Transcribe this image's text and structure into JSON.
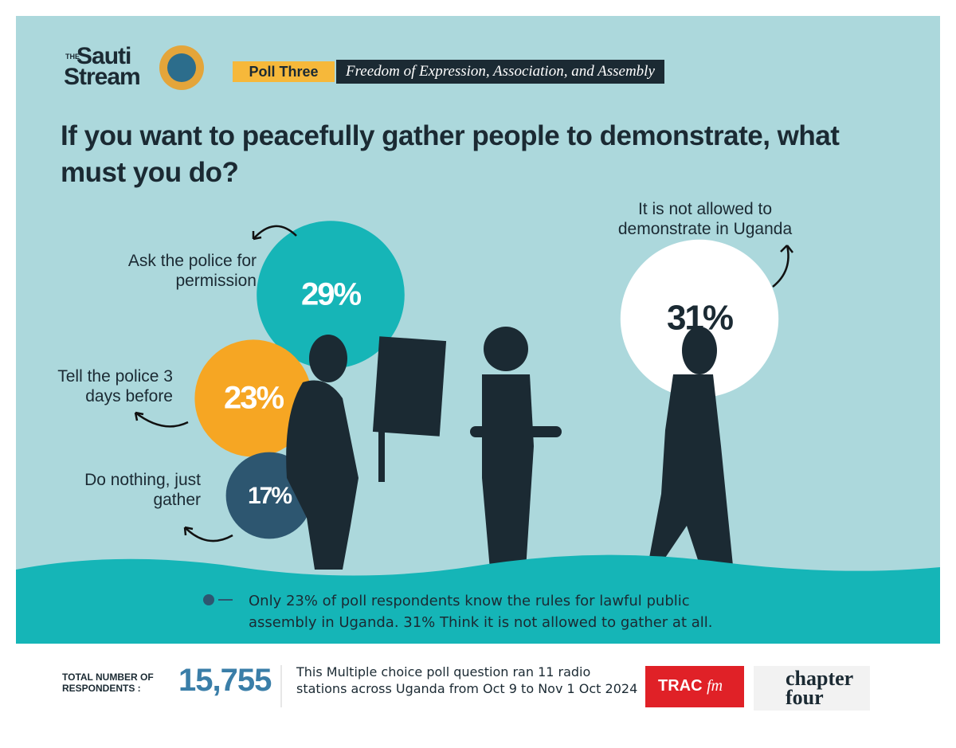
{
  "header": {
    "logo_small": "THE",
    "logo_line1": "Sauti",
    "logo_line2": "Stream",
    "poll_tag": "Poll Three",
    "poll_topic": "Freedom of Expression, Association, and Assembly"
  },
  "chart_data": {
    "type": "bubble",
    "title": "If you want to peacefully gather people to demonstrate, what must you do?",
    "categories": [
      "Ask the police for permission",
      "Tell the police 3 days before",
      "Do nothing, just gather",
      "It is not allowed to demonstrate in Uganda"
    ],
    "values": [
      29,
      23,
      17,
      31
    ],
    "value_labels": [
      "29%",
      "23%",
      "17%",
      "31%"
    ],
    "colors": [
      "#16b5b7",
      "#f6a623",
      "#2d5670",
      "#ffffff"
    ]
  },
  "note": [
    "Only 23% of poll respondents know the rules for lawful public",
    "assembly in Uganda. 31% Think it is not allowed to gather at all."
  ],
  "footer": {
    "respondents_label": [
      "TOTAL NUMBER OF",
      "RESPONDENTS :"
    ],
    "respondents": "15,755",
    "description": [
      "This Multiple choice poll question ran 11 radio",
      "stations across Uganda from Oct 9 to Nov 1 Oct 2024"
    ],
    "partner1": [
      "TRAC",
      "fm"
    ],
    "partner2": [
      "chapter",
      "four"
    ]
  }
}
